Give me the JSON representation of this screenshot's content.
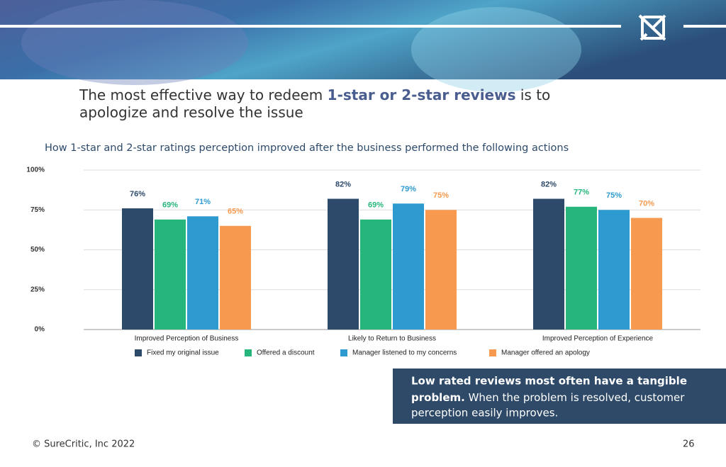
{
  "headline": [
    "The most effective way to redeem ",
    "1-star or 2-star reviews",
    " is to",
    "apologize and resolve the issue"
  ],
  "callout": [
    "Low rated reviews most often have a tangible",
    "problem.",
    " When the problem is resolved, customer",
    "perception easily improves."
  ],
  "footer": "© SureCritic, Inc 2022",
  "page_number": "26",
  "chart_data": {
    "type": "bar",
    "subtitle": "How 1-star and 2-star ratings perception improved after the business performed the following actions",
    "categories": [
      "Improved Perception of Business",
      "Likely to Return to Business",
      "Improved Perception of Experience"
    ],
    "series": [
      {
        "name": "Fixed my original issue",
        "color": "#2d4a6b",
        "values": [
          76,
          82,
          82
        ],
        "value_labels": [
          "76%",
          "82%",
          "82%"
        ]
      },
      {
        "name": "Offered a discount",
        "color": "#26b57a",
        "values": [
          69,
          69,
          77
        ],
        "value_labels": [
          "69%",
          "69%",
          "77%"
        ]
      },
      {
        "name": "Manager listened to my concerns",
        "color": "#2e9bd0",
        "values": [
          71,
          79,
          75
        ],
        "value_labels": [
          "71%",
          "79%",
          "75%"
        ]
      },
      {
        "name": "Manager offered an apology",
        "color": "#f79a50",
        "values": [
          65,
          75,
          70
        ],
        "value_labels": [
          "65%",
          "75%",
          "70%"
        ]
      }
    ],
    "ylim": [
      0,
      100
    ],
    "yticks": [
      {
        "value": 0,
        "label": "0%"
      },
      {
        "value": 25,
        "label": "25%"
      },
      {
        "value": 50,
        "label": "50%"
      },
      {
        "value": 75,
        "label": "75%"
      },
      {
        "value": 100,
        "label": "100%"
      }
    ],
    "grid": true,
    "legend": "bottom"
  }
}
